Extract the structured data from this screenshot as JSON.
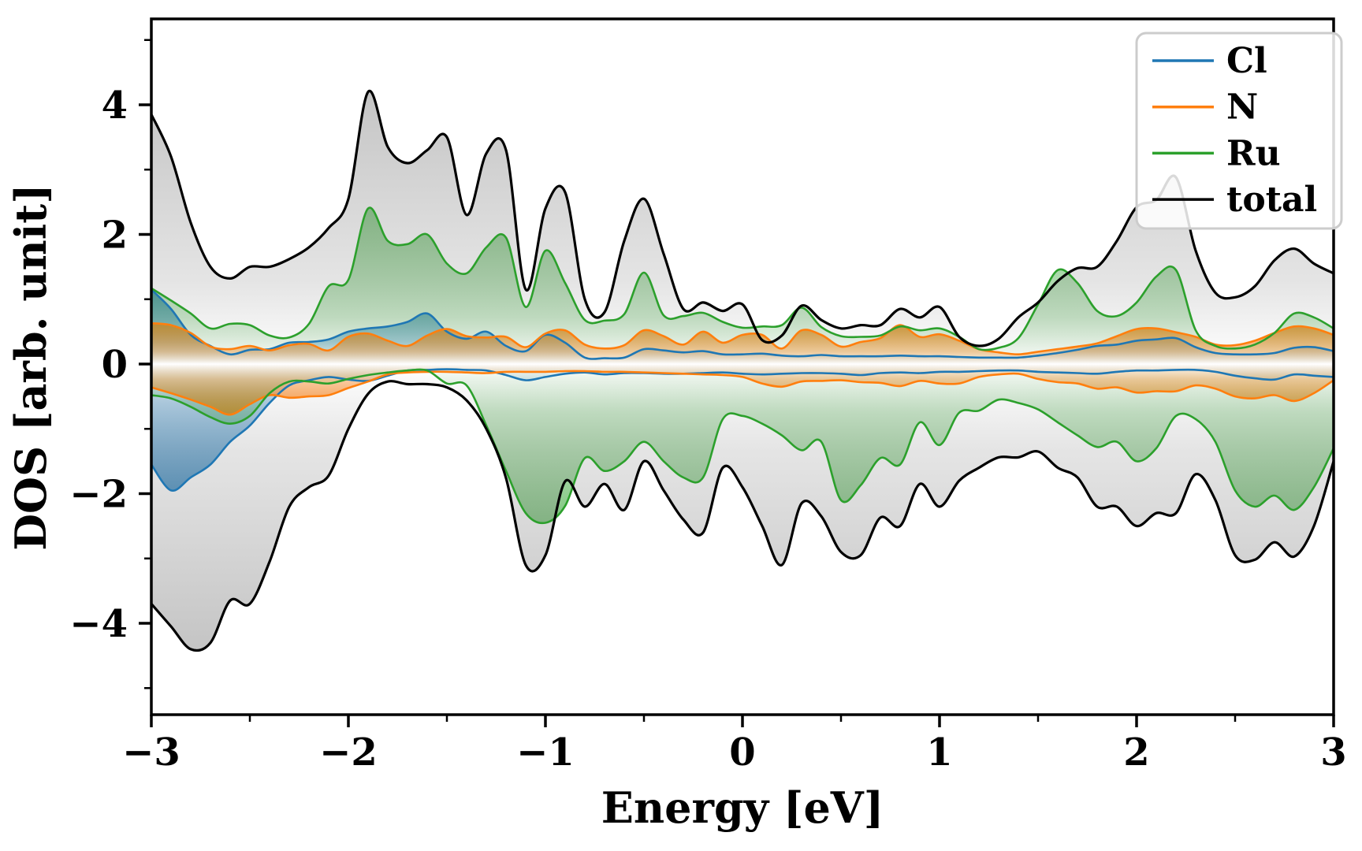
{
  "chart_data": {
    "type": "area",
    "title": "",
    "xlabel": "Energy [eV]",
    "ylabel": "DOS [arb. unit]",
    "xlim": [
      -3,
      3
    ],
    "ylim": [
      -5.4,
      5.35
    ],
    "x_major_ticks": [
      -3,
      -2,
      -1,
      0,
      1,
      2,
      3
    ],
    "x_minor_ticks": [
      -2.5,
      -1.5,
      -0.5,
      0.5,
      1.5,
      2.5
    ],
    "y_major_ticks": [
      -4,
      -2,
      0,
      2,
      4
    ],
    "y_minor_ticks": [
      -5,
      -3,
      -1,
      1,
      3,
      5
    ],
    "grid": false,
    "legend": {
      "position": "upper right",
      "entries": [
        "Cl",
        "N",
        "Ru",
        "total"
      ]
    },
    "description": "Spin-polarized density of states: positive lobe = spin up, negative lobe = spin down, gradient-filled areas under each curve",
    "x": [
      -3.0,
      -2.9,
      -2.8,
      -2.7,
      -2.6,
      -2.5,
      -2.4,
      -2.3,
      -2.2,
      -2.1,
      -2.0,
      -1.9,
      -1.8,
      -1.7,
      -1.6,
      -1.5,
      -1.4,
      -1.3,
      -1.2,
      -1.1,
      -1.0,
      -0.9,
      -0.8,
      -0.7,
      -0.6,
      -0.5,
      -0.4,
      -0.3,
      -0.2,
      -0.1,
      0.0,
      0.1,
      0.2,
      0.3,
      0.4,
      0.5,
      0.6,
      0.7,
      0.8,
      0.9,
      1.0,
      1.1,
      1.2,
      1.3,
      1.4,
      1.5,
      1.6,
      1.7,
      1.8,
      1.9,
      2.0,
      2.1,
      2.2,
      2.3,
      2.4,
      2.5,
      2.6,
      2.7,
      2.8,
      2.9,
      3.0
    ],
    "series": [
      {
        "name": "Cl",
        "color": "#1f77b4",
        "fill_color": "#1f77b4",
        "fill_alpha": 0.8,
        "line_width": 2.6,
        "up": [
          1.15,
          0.85,
          0.45,
          0.28,
          0.15,
          0.22,
          0.23,
          0.33,
          0.34,
          0.38,
          0.5,
          0.55,
          0.58,
          0.65,
          0.78,
          0.5,
          0.39,
          0.5,
          0.28,
          0.2,
          0.45,
          0.33,
          0.1,
          0.09,
          0.1,
          0.23,
          0.21,
          0.18,
          0.2,
          0.15,
          0.15,
          0.16,
          0.13,
          0.12,
          0.14,
          0.12,
          0.12,
          0.12,
          0.13,
          0.12,
          0.12,
          0.11,
          0.1,
          0.1,
          0.1,
          0.13,
          0.17,
          0.22,
          0.28,
          0.3,
          0.36,
          0.38,
          0.4,
          0.26,
          0.17,
          0.15,
          0.15,
          0.17,
          0.25,
          0.26,
          0.2
        ],
        "down": [
          -1.55,
          -1.95,
          -1.75,
          -1.55,
          -1.2,
          -0.95,
          -0.6,
          -0.33,
          -0.25,
          -0.2,
          -0.24,
          -0.26,
          -0.18,
          -0.1,
          -0.09,
          -0.08,
          -0.09,
          -0.1,
          -0.17,
          -0.25,
          -0.2,
          -0.15,
          -0.13,
          -0.16,
          -0.14,
          -0.14,
          -0.15,
          -0.15,
          -0.14,
          -0.13,
          -0.15,
          -0.16,
          -0.15,
          -0.14,
          -0.14,
          -0.15,
          -0.17,
          -0.14,
          -0.13,
          -0.14,
          -0.12,
          -0.12,
          -0.11,
          -0.1,
          -0.1,
          -0.12,
          -0.13,
          -0.14,
          -0.15,
          -0.12,
          -0.1,
          -0.1,
          -0.09,
          -0.09,
          -0.12,
          -0.18,
          -0.22,
          -0.24,
          -0.16,
          -0.18,
          -0.2
        ]
      },
      {
        "name": "N",
        "color": "#ff7f0e",
        "fill_color": "#ff7f0e",
        "fill_alpha": 0.85,
        "line_width": 2.6,
        "up": [
          0.63,
          0.6,
          0.48,
          0.27,
          0.23,
          0.28,
          0.21,
          0.29,
          0.31,
          0.21,
          0.42,
          0.47,
          0.36,
          0.28,
          0.44,
          0.54,
          0.43,
          0.41,
          0.42,
          0.26,
          0.47,
          0.52,
          0.3,
          0.24,
          0.29,
          0.52,
          0.43,
          0.3,
          0.5,
          0.33,
          0.45,
          0.45,
          0.24,
          0.52,
          0.45,
          0.27,
          0.34,
          0.4,
          0.6,
          0.42,
          0.46,
          0.36,
          0.23,
          0.18,
          0.15,
          0.19,
          0.23,
          0.27,
          0.32,
          0.43,
          0.54,
          0.55,
          0.49,
          0.42,
          0.3,
          0.29,
          0.36,
          0.48,
          0.58,
          0.55,
          0.45
        ],
        "down": [
          -0.36,
          -0.45,
          -0.55,
          -0.66,
          -0.78,
          -0.62,
          -0.48,
          -0.52,
          -0.5,
          -0.48,
          -0.37,
          -0.27,
          -0.16,
          -0.13,
          -0.12,
          -0.12,
          -0.13,
          -0.14,
          -0.12,
          -0.12,
          -0.12,
          -0.11,
          -0.11,
          -0.12,
          -0.12,
          -0.13,
          -0.14,
          -0.15,
          -0.16,
          -0.17,
          -0.2,
          -0.3,
          -0.35,
          -0.27,
          -0.26,
          -0.25,
          -0.28,
          -0.29,
          -0.34,
          -0.26,
          -0.3,
          -0.3,
          -0.2,
          -0.16,
          -0.15,
          -0.23,
          -0.28,
          -0.3,
          -0.38,
          -0.36,
          -0.44,
          -0.42,
          -0.42,
          -0.33,
          -0.38,
          -0.5,
          -0.53,
          -0.48,
          -0.57,
          -0.45,
          -0.25
        ]
      },
      {
        "name": "Ru",
        "color": "#2ca02c",
        "fill_color": "#2ca02c",
        "fill_alpha": 0.6,
        "line_width": 2.6,
        "up": [
          1.17,
          0.98,
          0.78,
          0.55,
          0.62,
          0.6,
          0.44,
          0.41,
          0.62,
          1.2,
          1.3,
          2.4,
          1.9,
          1.85,
          2.0,
          1.55,
          1.4,
          1.8,
          1.95,
          0.88,
          1.75,
          1.25,
          0.68,
          0.67,
          0.77,
          1.41,
          0.75,
          0.74,
          0.79,
          0.65,
          0.56,
          0.58,
          0.6,
          0.87,
          0.57,
          0.43,
          0.42,
          0.44,
          0.58,
          0.52,
          0.55,
          0.42,
          0.23,
          0.25,
          0.4,
          0.92,
          1.45,
          1.25,
          0.82,
          0.74,
          0.95,
          1.35,
          1.45,
          0.52,
          0.28,
          0.24,
          0.3,
          0.48,
          0.78,
          0.72,
          0.55
        ],
        "down": [
          -0.48,
          -0.53,
          -0.66,
          -0.82,
          -0.92,
          -0.8,
          -0.45,
          -0.27,
          -0.27,
          -0.3,
          -0.23,
          -0.17,
          -0.13,
          -0.1,
          -0.1,
          -0.3,
          -0.33,
          -0.95,
          -1.65,
          -2.3,
          -2.45,
          -2.19,
          -1.45,
          -1.65,
          -1.5,
          -1.2,
          -1.5,
          -1.75,
          -1.75,
          -0.85,
          -0.8,
          -0.92,
          -1.1,
          -1.33,
          -1.2,
          -2.1,
          -1.87,
          -1.45,
          -1.55,
          -0.9,
          -1.25,
          -0.75,
          -0.72,
          -0.55,
          -0.6,
          -0.7,
          -0.9,
          -1.1,
          -1.28,
          -1.2,
          -1.5,
          -1.3,
          -0.8,
          -0.85,
          -1.2,
          -1.95,
          -2.2,
          -2.03,
          -2.25,
          -1.9,
          -1.3
        ]
      },
      {
        "name": "total",
        "color": "#000000",
        "fill_color": "#8a8a8a",
        "fill_alpha": 0.5,
        "line_width": 3.2,
        "up": [
          3.85,
          3.2,
          2.18,
          1.5,
          1.32,
          1.5,
          1.5,
          1.62,
          1.8,
          2.1,
          2.55,
          4.2,
          3.35,
          3.1,
          3.3,
          3.5,
          2.3,
          3.25,
          3.3,
          1.15,
          2.4,
          2.65,
          1.0,
          0.8,
          1.9,
          2.55,
          1.7,
          0.85,
          0.95,
          0.82,
          0.92,
          0.37,
          0.44,
          0.9,
          0.68,
          0.55,
          0.6,
          0.6,
          0.85,
          0.72,
          0.88,
          0.42,
          0.28,
          0.39,
          0.72,
          0.95,
          1.28,
          1.48,
          1.5,
          1.9,
          2.42,
          2.53,
          2.88,
          1.75,
          1.1,
          1.03,
          1.2,
          1.6,
          1.78,
          1.55,
          1.4
        ],
        "down": [
          -3.7,
          -4.05,
          -4.4,
          -4.3,
          -3.65,
          -3.7,
          -3.05,
          -2.2,
          -1.9,
          -1.72,
          -1.0,
          -0.46,
          -0.27,
          -0.31,
          -0.31,
          -0.36,
          -0.56,
          -1.0,
          -1.76,
          -3.1,
          -2.95,
          -1.81,
          -2.2,
          -1.85,
          -2.25,
          -1.5,
          -1.95,
          -2.4,
          -2.6,
          -1.6,
          -1.9,
          -2.5,
          -3.1,
          -2.15,
          -2.35,
          -2.9,
          -2.95,
          -2.37,
          -2.5,
          -1.85,
          -2.2,
          -1.8,
          -1.6,
          -1.44,
          -1.44,
          -1.35,
          -1.6,
          -1.75,
          -2.2,
          -2.2,
          -2.5,
          -2.3,
          -2.3,
          -1.7,
          -2.1,
          -2.95,
          -3.02,
          -2.75,
          -2.97,
          -2.5,
          -1.5
        ]
      }
    ]
  },
  "style": {
    "background": "#ffffff",
    "spine_color": "#000000",
    "legend_border_color": "#cccccc",
    "legend_background": "#ffffff"
  }
}
